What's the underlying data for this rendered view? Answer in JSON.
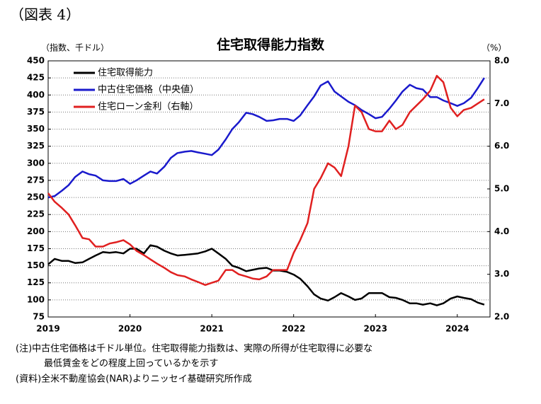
{
  "header": "（図表 4）",
  "chart_data": {
    "type": "line",
    "title": "住宅取得能力指数",
    "y_label": "（指数、千ドル）",
    "y2_label": "（%）",
    "x": [
      2019.0,
      2019.08,
      2019.17,
      2019.25,
      2019.33,
      2019.42,
      2019.5,
      2019.58,
      2019.67,
      2019.75,
      2019.83,
      2019.92,
      2020.0,
      2020.08,
      2020.17,
      2020.25,
      2020.33,
      2020.42,
      2020.5,
      2020.58,
      2020.67,
      2020.75,
      2020.83,
      2020.92,
      2021.0,
      2021.08,
      2021.17,
      2021.25,
      2021.33,
      2021.42,
      2021.5,
      2021.58,
      2021.67,
      2021.75,
      2021.83,
      2021.92,
      2022.0,
      2022.08,
      2022.17,
      2022.25,
      2022.33,
      2022.42,
      2022.5,
      2022.58,
      2022.67,
      2022.75,
      2022.83,
      2022.92,
      2023.0,
      2023.08,
      2023.17,
      2023.25,
      2023.33,
      2023.42,
      2023.5,
      2023.58,
      2023.67,
      2023.75,
      2023.83,
      2023.92,
      2024.0,
      2024.08,
      2024.17,
      2024.25,
      2024.33
    ],
    "xlim": [
      2019,
      2024.4
    ],
    "xticks": [
      2019,
      2020,
      2021,
      2022,
      2023,
      2024
    ],
    "ylim": [
      75,
      450
    ],
    "yticks": [
      75,
      100,
      125,
      150,
      175,
      200,
      225,
      250,
      275,
      300,
      325,
      350,
      375,
      400,
      425,
      450
    ],
    "y2lim": [
      2,
      8
    ],
    "y2ticks": [
      {
        "value": 2,
        "label": "2.0"
      },
      {
        "value": 3,
        "label": "3.0"
      },
      {
        "value": 4,
        "label": "4.0"
      },
      {
        "value": 5,
        "label": "5.0"
      },
      {
        "value": 6,
        "label": "6.0"
      },
      {
        "value": 7,
        "label": "7.0"
      },
      {
        "value": 8,
        "label": "8.0"
      }
    ],
    "grid": true,
    "legend": "upper left",
    "series": [
      {
        "name": "住宅取得能力",
        "color": "#000000",
        "values": [
          152,
          160,
          157,
          157,
          154,
          155,
          160,
          165,
          170,
          169,
          170,
          168,
          175,
          175,
          168,
          180,
          178,
          172,
          168,
          165,
          166,
          167,
          168,
          171,
          175,
          168,
          160,
          150,
          147,
          142,
          144,
          146,
          147,
          143,
          143,
          141,
          137,
          131,
          120,
          108,
          102,
          99,
          104,
          110,
          105,
          100,
          102,
          110,
          110,
          110,
          104,
          103,
          100,
          95,
          95,
          93,
          95,
          92,
          95,
          102,
          105,
          103,
          101,
          96,
          93
        ]
      },
      {
        "name": "中古住宅価格（中央値）",
        "color": "#1a1acc",
        "values": [
          250,
          252,
          260,
          268,
          280,
          288,
          284,
          282,
          275,
          274,
          274,
          277,
          270,
          275,
          282,
          288,
          285,
          295,
          308,
          315,
          317,
          318,
          316,
          314,
          312,
          320,
          335,
          350,
          360,
          374,
          372,
          368,
          362,
          363,
          365,
          365,
          362,
          370,
          385,
          398,
          414,
          420,
          405,
          398,
          390,
          385,
          378,
          372,
          366,
          368,
          380,
          392,
          405,
          415,
          410,
          408,
          397,
          397,
          392,
          388,
          384,
          388,
          396,
          410,
          425
        ]
      },
      {
        "name": "住宅ローン金利（右軸）",
        "color": "#e02020",
        "axis": "y2",
        "values": [
          4.9,
          4.7,
          4.55,
          4.4,
          4.15,
          3.85,
          3.82,
          3.65,
          3.65,
          3.72,
          3.75,
          3.8,
          3.7,
          3.55,
          3.45,
          3.35,
          3.25,
          3.15,
          3.05,
          2.98,
          2.95,
          2.88,
          2.82,
          2.75,
          2.8,
          2.85,
          3.1,
          3.1,
          3.0,
          2.95,
          2.9,
          2.88,
          2.95,
          3.1,
          3.1,
          3.1,
          3.5,
          3.8,
          4.2,
          5.0,
          5.25,
          5.6,
          5.5,
          5.3,
          6.0,
          6.95,
          6.8,
          6.4,
          6.35,
          6.35,
          6.6,
          6.4,
          6.5,
          6.8,
          6.95,
          7.1,
          7.3,
          7.65,
          7.5,
          6.9,
          6.7,
          6.85,
          6.9,
          7.0,
          7.1
        ]
      }
    ]
  },
  "notes": [
    "(注)中古住宅価格は千ドル単位。住宅取得能力指数は、実際の所得が住宅取得に必要な",
    "最低賃金をどの程度上回っているかを示す",
    "(資料)全米不動産協会(NAR)よりニッセイ基礎研究所作成"
  ]
}
